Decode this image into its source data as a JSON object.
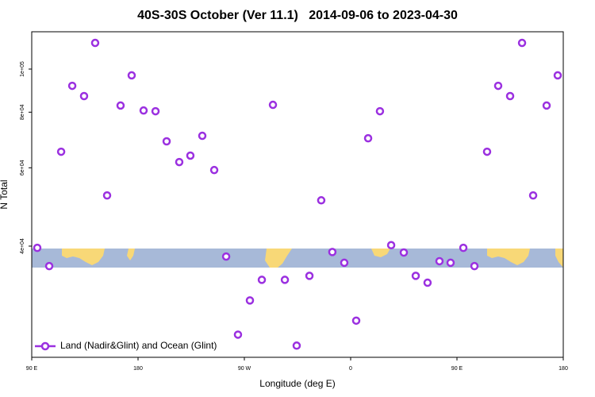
{
  "chart_data": {
    "type": "scatter",
    "title": "40S-30S October (Ver 11.1)   2014-09-06 to 2023-04-30",
    "x_label": "Longitude (deg E)",
    "y_label": "N Total",
    "xlim": [
      90,
      540
    ],
    "xticks": [
      {
        "value": 90,
        "label": "90 E"
      },
      {
        "value": 180,
        "label": "180"
      },
      {
        "value": 270,
        "label": "90 W"
      },
      {
        "value": 360,
        "label": "0"
      },
      {
        "value": 450,
        "label": "90 E"
      },
      {
        "value": 540,
        "label": "180"
      }
    ],
    "ylim": [
      22500,
      121300
    ],
    "log_y": true,
    "yticks": [
      {
        "value": 40000,
        "label": "4e+04"
      },
      {
        "value": 60000,
        "label": "6e+04"
      },
      {
        "value": 80000,
        "label": "8e+04"
      },
      {
        "value": 100000,
        "label": "1e+05"
      }
    ],
    "legend": "lower left",
    "series": [
      {
        "name": "Land (Nadir&Glint) and Ocean (Glint)",
        "color": "#9b30e0",
        "x": [
          94.7,
          104.8,
          114.9,
          124.3,
          134.3,
          143.7,
          153.8,
          165.2,
          174.6,
          184.7,
          194.8,
          204.2,
          214.9,
          224.3,
          234.4,
          244.5,
          254.6,
          264.6,
          274.7,
          284.8,
          294.2,
          304.3,
          314.3,
          325.1,
          335.1,
          344.5,
          354.6,
          364.7,
          374.8,
          384.8,
          394.3,
          405.0,
          415.1,
          425.1,
          435.2,
          444.6,
          455.4,
          464.8,
          475.5,
          484.9,
          495.0,
          505.1,
          514.5,
          525.9,
          535.3
        ],
        "values": [
          39650,
          36070,
          65200,
          91700,
          86960,
          114500,
          52000,
          82800,
          96800,
          80700,
          80400,
          68800,
          61800,
          63900,
          70800,
          59300,
          37900,
          25300,
          30200,
          33600,
          83100,
          33600,
          23900,
          34300,
          50700,
          38800,
          36700,
          27200,
          69900,
          80400,
          40200,
          38700,
          34300,
          33100,
          37000,
          36700,
          39650,
          36070,
          65200,
          91700,
          86960,
          114500,
          52000,
          82800,
          96800
        ]
      }
    ]
  }
}
